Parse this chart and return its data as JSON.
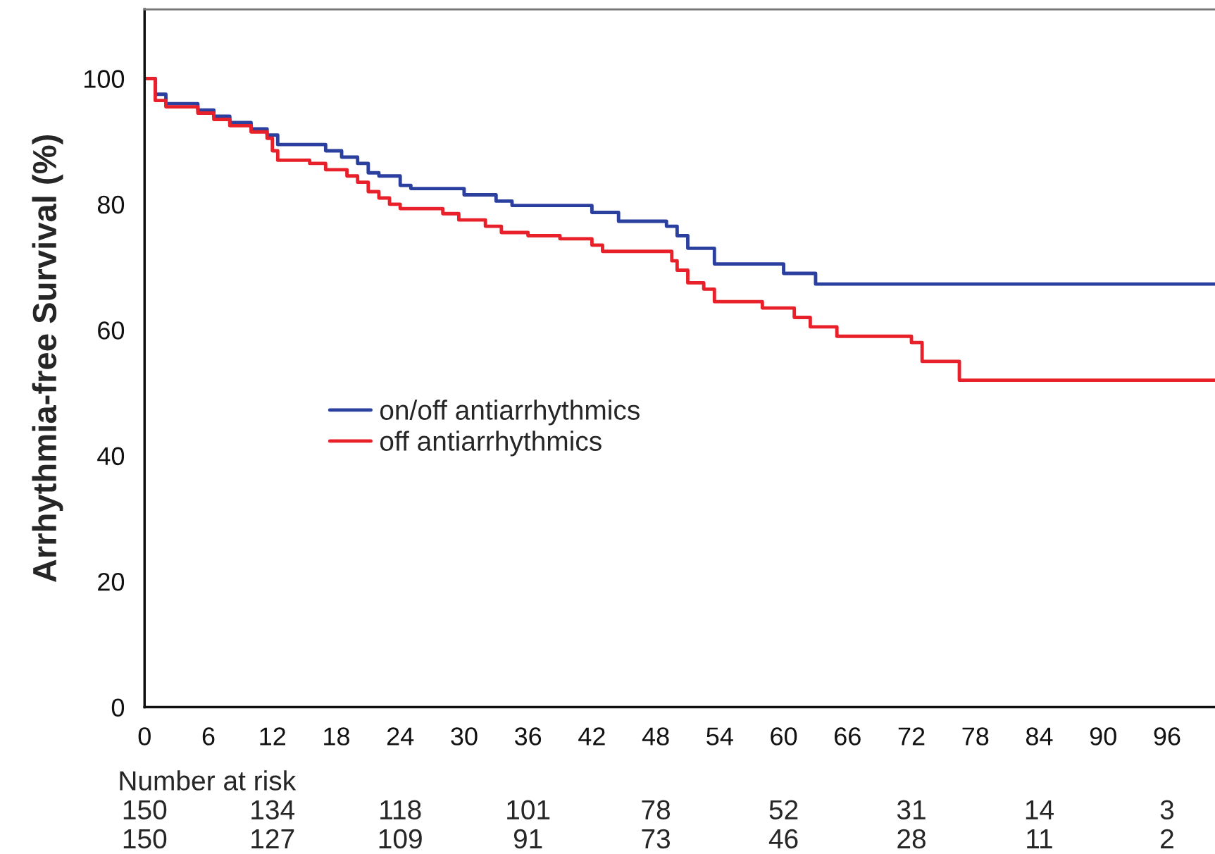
{
  "chart_data": {
    "type": "step",
    "ylabel": "Arrhythmia-free Survival (%)",
    "xlim": [
      0,
      100.5
    ],
    "ylim": [
      0,
      111
    ],
    "xticks": [
      0,
      6,
      12,
      18,
      24,
      30,
      36,
      42,
      48,
      54,
      60,
      66,
      72,
      78,
      84,
      90,
      96
    ],
    "yticks": [
      0,
      20,
      40,
      60,
      80,
      100
    ],
    "legend": "left",
    "grid": false,
    "series": [
      {
        "name": "on/off antiarrhythmics",
        "color": "#2b3f9e",
        "x": [
          0,
          1,
          2,
          5,
          6.5,
          8,
          10,
          11.5,
          12.5,
          17,
          18.5,
          20,
          21,
          22,
          24,
          25,
          30,
          33,
          34.5,
          42,
          44.5,
          49,
          50,
          51,
          53.5,
          60,
          63,
          100.5
        ],
        "values": [
          100,
          97.5,
          96,
          95,
          94,
          93,
          92,
          91,
          89.5,
          88.5,
          87.5,
          86.5,
          85,
          84.5,
          83,
          82.5,
          81.5,
          80.5,
          79.8,
          78.7,
          77.3,
          76.5,
          75,
          73,
          70.5,
          69,
          67.3,
          67.3
        ]
      },
      {
        "name": "off antiarrhythmics",
        "color": "#e8202a",
        "x": [
          0,
          1,
          2,
          5,
          6.5,
          8,
          10,
          11.5,
          12,
          12.5,
          15.5,
          17,
          19,
          20,
          21,
          22,
          23,
          24,
          28,
          29.5,
          32,
          33.5,
          36,
          39,
          42,
          43,
          49.5,
          50,
          51,
          52.5,
          53.5,
          58,
          61,
          62.5,
          65,
          72,
          73,
          76.5,
          100.5
        ],
        "values": [
          100,
          96.5,
          95.5,
          94.5,
          93.5,
          92.5,
          91.5,
          90.5,
          88.5,
          87,
          86.5,
          85.5,
          84.5,
          83.5,
          82,
          81,
          80,
          79.3,
          78.5,
          77.5,
          76.5,
          75.5,
          75,
          74.5,
          73.5,
          72.5,
          71,
          69.5,
          67.5,
          66.5,
          64.5,
          63.5,
          62,
          60.5,
          59,
          58,
          55,
          52,
          52
        ]
      }
    ],
    "annotations": [
      "Number at risk",
      "150",
      "134",
      "118",
      "101",
      "78",
      "52",
      "31",
      "14",
      "3",
      "150",
      "127",
      "109",
      "91",
      "73",
      "46",
      "28",
      "11",
      "2"
    ]
  }
}
